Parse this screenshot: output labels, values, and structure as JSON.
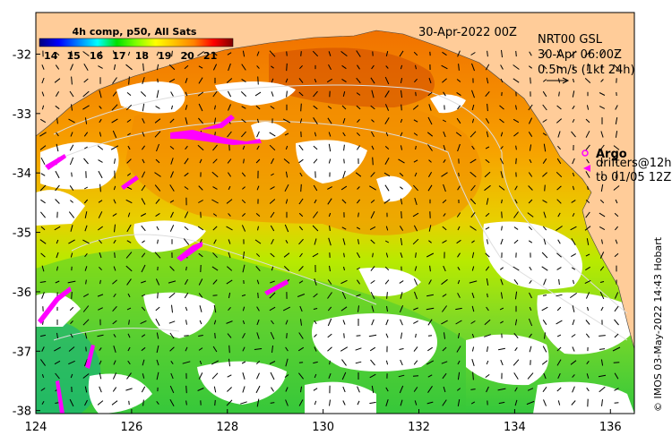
{
  "map": {
    "lon_range": [
      124,
      136.5
    ],
    "lat_range": [
      -38.05,
      -31.3
    ],
    "x_ticks": [
      124,
      126,
      128,
      130,
      132,
      134,
      136
    ],
    "x_tick_labels": [
      "124",
      "126",
      "128",
      "130",
      "132",
      "134",
      "136"
    ],
    "y_ticks": [
      -32,
      -33,
      -34,
      -35,
      -36,
      -37,
      -38
    ],
    "y_tick_labels": [
      "-32",
      "-33",
      "-34",
      "-35",
      "-36",
      "-37",
      "-38"
    ],
    "land_color": "#ffcc99",
    "cloud_color": "#ffffff"
  },
  "colorbar": {
    "title": "4h comp, p50, All Sats",
    "labels": [
      "14",
      "15",
      "16",
      "17",
      "18",
      "19",
      "20",
      "21"
    ],
    "range": [
      13.5,
      22
    ],
    "colors": [
      "#000080",
      "#0000ff",
      "#0080ff",
      "#00ffff",
      "#00e000",
      "#80ff00",
      "#ffff00",
      "#ffc000",
      "#ff8000",
      "#ff0000",
      "#800000"
    ]
  },
  "header": {
    "date": "30-Apr-2022 00Z"
  },
  "currents_legend": {
    "line1": "NRT00 GSL",
    "line2": "30-Apr 06:00Z",
    "line3": "0.5m/s (1kt 24h)"
  },
  "argo_legend": {
    "title": "Argo",
    "line1": "drifters@12h",
    "line2": "to 01/05 12Z",
    "argo_color": "#ff00ff",
    "drifter_color": "#ff00ff"
  },
  "credit": {
    "text": "© IMOS 03-May-2022 14:43 Hobart"
  }
}
